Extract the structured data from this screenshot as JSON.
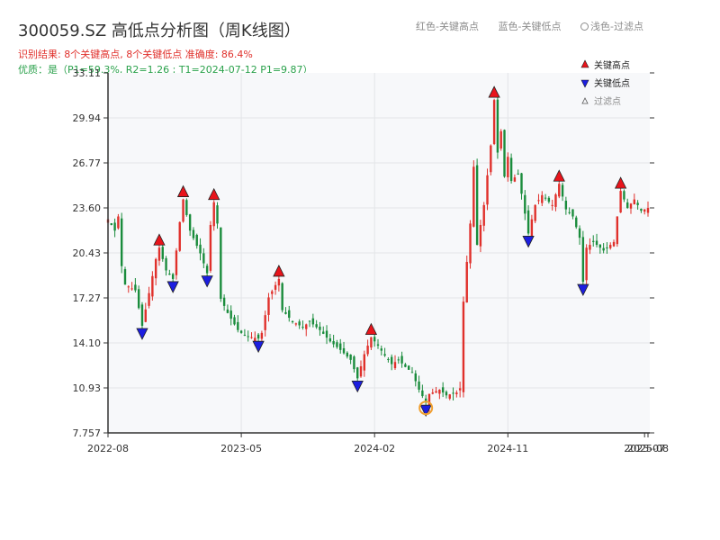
{
  "header": {
    "title": "300059.SZ 高低点分析图（周K线图）",
    "result_line": "识别结果: 8个关键高点, 8个关键低点   准确度: 86.4%",
    "quality_line": "优质：是（P1=59.3%, R2=1.26 ; T1=2024-07-12 P1=9.87）"
  },
  "top_legend": {
    "red": "红色-关键高点",
    "blue": "蓝色-关键低点",
    "light": "浅色-过滤点"
  },
  "colors": {
    "up": "#e0302b",
    "down": "#1a8c3c",
    "high_marker": "#e8141b",
    "low_marker": "#1c1ee0",
    "filter_circle": "#f0a030",
    "plot_bg": "#f7f8fa",
    "grid": "#e3e5e8"
  },
  "chart_data": {
    "type": "candlestick",
    "yticks": [
      "33.11",
      "29.94",
      "26.77",
      "23.60",
      "20.43",
      "17.27",
      "14.10",
      "10.93",
      "7.757"
    ],
    "ylim": [
      7.757,
      33.11
    ],
    "xticks": [
      {
        "label": "2022-08",
        "w": 0
      },
      {
        "label": "2023-05",
        "w": 39
      },
      {
        "label": "2024-02",
        "w": 78
      },
      {
        "label": "2024-11",
        "w": 117
      },
      {
        "label": "2025-07",
        "w": 157
      },
      {
        "label": "2025-08",
        "w": 158
      }
    ],
    "week_count": 158,
    "price_path": [
      [
        0,
        22.8
      ],
      [
        2,
        22.0
      ],
      [
        3,
        23.0
      ],
      [
        4,
        19.5
      ],
      [
        5,
        18.2
      ],
      [
        8,
        17.8
      ],
      [
        10,
        15.3
      ],
      [
        12,
        17.6
      ],
      [
        14,
        20.0
      ],
      [
        15,
        20.8
      ],
      [
        17,
        19.2
      ],
      [
        19,
        18.6
      ],
      [
        21,
        22.6
      ],
      [
        22,
        24.2
      ],
      [
        24,
        22.0
      ],
      [
        27,
        20.4
      ],
      [
        29,
        19.0
      ],
      [
        30,
        22.4
      ],
      [
        31,
        24.0
      ],
      [
        32,
        22.5
      ],
      [
        33,
        17.2
      ],
      [
        35,
        16.2
      ],
      [
        38,
        15.0
      ],
      [
        40,
        14.6
      ],
      [
        44,
        14.4
      ],
      [
        45,
        14.8
      ],
      [
        47,
        17.3
      ],
      [
        50,
        18.6
      ],
      [
        51,
        16.4
      ],
      [
        54,
        15.6
      ],
      [
        57,
        15.2
      ],
      [
        59,
        15.6
      ],
      [
        62,
        15.0
      ],
      [
        65,
        14.2
      ],
      [
        68,
        13.6
      ],
      [
        71,
        12.9
      ],
      [
        73,
        11.6
      ],
      [
        75,
        13.3
      ],
      [
        77,
        14.5
      ],
      [
        79,
        13.9
      ],
      [
        81,
        13.2
      ],
      [
        83,
        12.6
      ],
      [
        85,
        12.9
      ],
      [
        87,
        12.4
      ],
      [
        89,
        12.0
      ],
      [
        91,
        10.8
      ],
      [
        93,
        9.9
      ],
      [
        94,
        10.5
      ],
      [
        97,
        10.8
      ],
      [
        99,
        10.4
      ],
      [
        102,
        10.6
      ],
      [
        103,
        10.9
      ],
      [
        104,
        17.0
      ],
      [
        105,
        19.8
      ],
      [
        106,
        22.5
      ],
      [
        107,
        26.5
      ],
      [
        108,
        21.0
      ],
      [
        110,
        23.8
      ],
      [
        112,
        28.0
      ],
      [
        113,
        31.2
      ],
      [
        114,
        27.5
      ],
      [
        115,
        29.0
      ],
      [
        116,
        25.8
      ],
      [
        117,
        27.2
      ],
      [
        118,
        25.5
      ],
      [
        120,
        26.0
      ],
      [
        122,
        23.2
      ],
      [
        123,
        21.8
      ],
      [
        125,
        23.8
      ],
      [
        127,
        24.5
      ],
      [
        130,
        23.8
      ],
      [
        132,
        25.3
      ],
      [
        134,
        23.5
      ],
      [
        136,
        23.0
      ],
      [
        138,
        21.5
      ],
      [
        139,
        18.4
      ],
      [
        140,
        20.8
      ],
      [
        142,
        21.2
      ],
      [
        145,
        20.6
      ],
      [
        148,
        21.2
      ],
      [
        150,
        24.8
      ],
      [
        152,
        23.6
      ],
      [
        154,
        24.2
      ],
      [
        156,
        23.4
      ],
      [
        158,
        23.6
      ]
    ],
    "key_highs": [
      {
        "w": 15,
        "price": 20.8
      },
      {
        "w": 22,
        "price": 24.2
      },
      {
        "w": 31,
        "price": 24.0
      },
      {
        "w": 50,
        "price": 18.6
      },
      {
        "w": 77,
        "price": 14.5
      },
      {
        "w": 113,
        "price": 31.2
      },
      {
        "w": 132,
        "price": 25.3
      },
      {
        "w": 150,
        "price": 24.8
      }
    ],
    "key_lows": [
      {
        "w": 10,
        "price": 15.3
      },
      {
        "w": 19,
        "price": 18.6
      },
      {
        "w": 29,
        "price": 19.0
      },
      {
        "w": 44,
        "price": 14.4
      },
      {
        "w": 73,
        "price": 11.6
      },
      {
        "w": 93,
        "price": 9.9
      },
      {
        "w": 123,
        "price": 21.8
      },
      {
        "w": 139,
        "price": 18.4
      }
    ],
    "filtered_points": [
      {
        "w": 93,
        "price": 9.9
      }
    ],
    "legend": [
      {
        "label": "关键高点",
        "kind": "high"
      },
      {
        "label": "关键低点",
        "kind": "low"
      },
      {
        "label": "过滤点",
        "kind": "filter"
      }
    ],
    "grid": true
  }
}
